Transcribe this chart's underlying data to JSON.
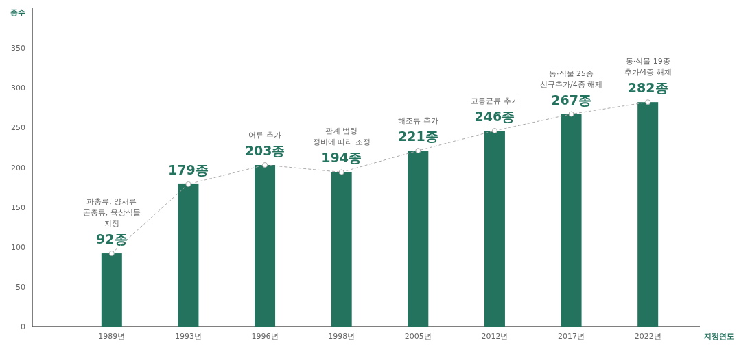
{
  "chart_data": {
    "type": "bar",
    "ylabel": "종수",
    "xlabel": "지정연도",
    "categories": [
      "1989년",
      "1993년",
      "1996년",
      "1998년",
      "2005년",
      "2012년",
      "2017년",
      "2022년"
    ],
    "series": [
      {
        "color": "#24735f",
        "values": [
          92,
          179,
          203,
          194,
          221,
          246,
          267,
          282
        ],
        "value_labels": [
          "92종",
          "179종",
          "203종",
          "194종",
          "221종",
          "246종",
          "267종",
          "282종"
        ]
      },
      {
        "type": "line",
        "color": "#aaaaaa",
        "line_style": "dashed",
        "marker": "circle",
        "values": [
          92,
          179,
          203,
          194,
          221,
          246,
          267,
          282
        ]
      }
    ],
    "annotations": [
      "파충류, 양서류\n곤충류, 육상식물\n지정",
      "어류 추가",
      "관계 법령\n정비에 따라 조정",
      "해조류 추가",
      "고등균류 추가",
      "동·식물 25종\n신규추가/4종 해제",
      "동·식물 19종\n추가/4종 해제"
    ],
    "ylim": [
      0,
      400
    ],
    "yticks": [
      0,
      50,
      100,
      150,
      200,
      250,
      300,
      350
    ],
    "grid": false
  }
}
